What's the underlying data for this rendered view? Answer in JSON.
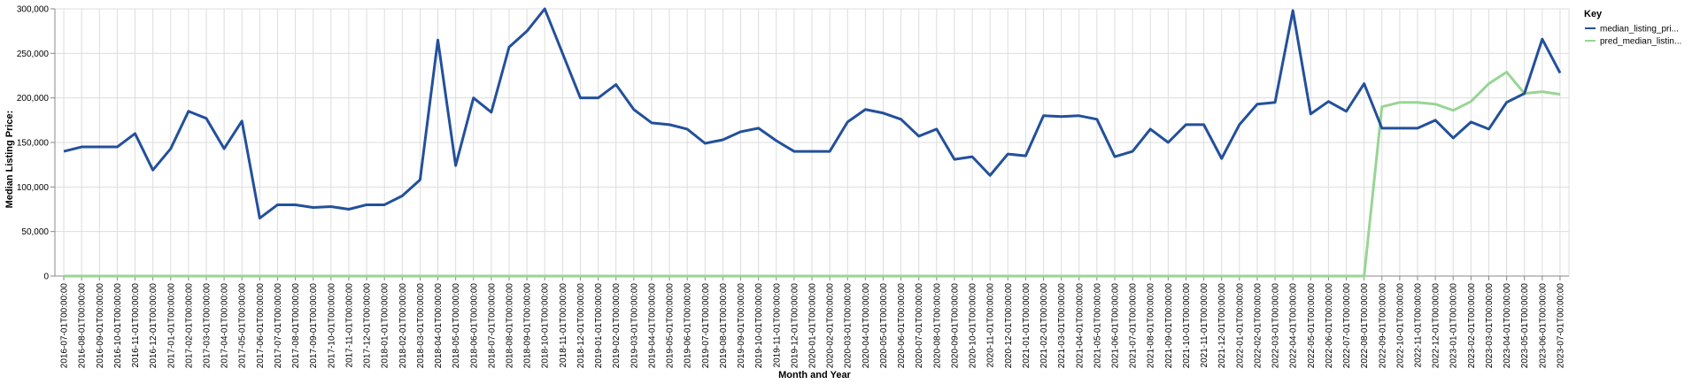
{
  "chart_data": {
    "type": "line",
    "xlabel": "Month and Year",
    "ylabel": "Median Listing Price:",
    "ylim": [
      0,
      300000
    ],
    "yticks": [
      "0",
      "50,000",
      "100,000",
      "150,000",
      "200,000",
      "250,000",
      "300,000"
    ],
    "ytick_values": [
      0,
      50000,
      100000,
      150000,
      200000,
      250000,
      300000
    ],
    "grid": true,
    "legend_position": "top-right",
    "legend_title": "Key",
    "x": [
      "2016-07-01T00:00:00",
      "2016-08-01T00:00:00",
      "2016-09-01T00:00:00",
      "2016-10-01T00:00:00",
      "2016-11-01T00:00:00",
      "2016-12-01T00:00:00",
      "2017-01-01T00:00:00",
      "2017-02-01T00:00:00",
      "2017-03-01T00:00:00",
      "2017-04-01T00:00:00",
      "2017-05-01T00:00:00",
      "2017-06-01T00:00:00",
      "2017-07-01T00:00:00",
      "2017-08-01T00:00:00",
      "2017-09-01T00:00:00",
      "2017-10-01T00:00:00",
      "2017-11-01T00:00:00",
      "2017-12-01T00:00:00",
      "2018-01-01T00:00:00",
      "2018-02-01T00:00:00",
      "2018-03-01T00:00:00",
      "2018-04-01T00:00:00",
      "2018-05-01T00:00:00",
      "2018-06-01T00:00:00",
      "2018-07-01T00:00:00",
      "2018-08-01T00:00:00",
      "2018-09-01T00:00:00",
      "2018-10-01T00:00:00",
      "2018-11-01T00:00:00",
      "2018-12-01T00:00:00",
      "2019-01-01T00:00:00",
      "2019-02-01T00:00:00",
      "2019-03-01T00:00:00",
      "2019-04-01T00:00:00",
      "2019-05-01T00:00:00",
      "2019-06-01T00:00:00",
      "2019-07-01T00:00:00",
      "2019-08-01T00:00:00",
      "2019-09-01T00:00:00",
      "2019-10-01T00:00:00",
      "2019-11-01T00:00:00",
      "2019-12-01T00:00:00",
      "2020-01-01T00:00:00",
      "2020-02-01T00:00:00",
      "2020-03-01T00:00:00",
      "2020-04-01T00:00:00",
      "2020-05-01T00:00:00",
      "2020-06-01T00:00:00",
      "2020-07-01T00:00:00",
      "2020-08-01T00:00:00",
      "2020-09-01T00:00:00",
      "2020-10-01T00:00:00",
      "2020-11-01T00:00:00",
      "2020-12-01T00:00:00",
      "2021-01-01T00:00:00",
      "2021-02-01T00:00:00",
      "2021-03-01T00:00:00",
      "2021-04-01T00:00:00",
      "2021-05-01T00:00:00",
      "2021-06-01T00:00:00",
      "2021-07-01T00:00:00",
      "2021-08-01T00:00:00",
      "2021-09-01T00:00:00",
      "2021-10-01T00:00:00",
      "2021-11-01T00:00:00",
      "2021-12-01T00:00:00",
      "2022-01-01T00:00:00",
      "2022-02-01T00:00:00",
      "2022-03-01T00:00:00",
      "2022-04-01T00:00:00",
      "2022-05-01T00:00:00",
      "2022-06-01T00:00:00",
      "2022-07-01T00:00:00",
      "2022-08-01T00:00:00",
      "2022-09-01T00:00:00",
      "2022-10-01T00:00:00",
      "2022-11-01T00:00:00",
      "2022-12-01T00:00:00",
      "2023-01-01T00:00:00",
      "2023-02-01T00:00:00",
      "2023-03-01T00:00:00",
      "2023-04-01T00:00:00",
      "2023-05-01T00:00:00",
      "2023-06-01T00:00:00",
      "2023-07-01T00:00:00"
    ],
    "series": [
      {
        "name": "median_listing_pri...",
        "color": "#23509b",
        "values": [
          140000,
          145000,
          145000,
          145000,
          160000,
          119000,
          143000,
          185000,
          177000,
          143000,
          174000,
          65000,
          80000,
          80000,
          77000,
          78000,
          75000,
          80000,
          80000,
          90000,
          108000,
          265000,
          124000,
          200000,
          184000,
          257000,
          275000,
          300000,
          250000,
          200000,
          200000,
          215000,
          187000,
          172000,
          170000,
          165000,
          149000,
          153000,
          162000,
          166000,
          152000,
          140000,
          140000,
          140000,
          173000,
          187000,
          183000,
          176000,
          157000,
          165000,
          131000,
          134000,
          113000,
          137000,
          135000,
          180000,
          179000,
          180000,
          176000,
          134000,
          140000,
          165000,
          150000,
          170000,
          170000,
          132000,
          170000,
          193000,
          195000,
          298000,
          182000,
          196000,
          185000,
          216000,
          166000,
          166000,
          166000,
          175000,
          155000,
          173000,
          165000,
          195000,
          205000,
          266000,
          228000
        ]
      },
      {
        "name": "pred_median_listin...",
        "color": "#98d594",
        "values": [
          0,
          0,
          0,
          0,
          0,
          0,
          0,
          0,
          0,
          0,
          0,
          0,
          0,
          0,
          0,
          0,
          0,
          0,
          0,
          0,
          0,
          0,
          0,
          0,
          0,
          0,
          0,
          0,
          0,
          0,
          0,
          0,
          0,
          0,
          0,
          0,
          0,
          0,
          0,
          0,
          0,
          0,
          0,
          0,
          0,
          0,
          0,
          0,
          0,
          0,
          0,
          0,
          0,
          0,
          0,
          0,
          0,
          0,
          0,
          0,
          0,
          0,
          0,
          0,
          0,
          0,
          0,
          0,
          0,
          0,
          0,
          0,
          0,
          0,
          190000,
          195000,
          195000,
          193000,
          186000,
          196000,
          216000,
          229000,
          205000,
          207000,
          204000
        ]
      }
    ]
  }
}
